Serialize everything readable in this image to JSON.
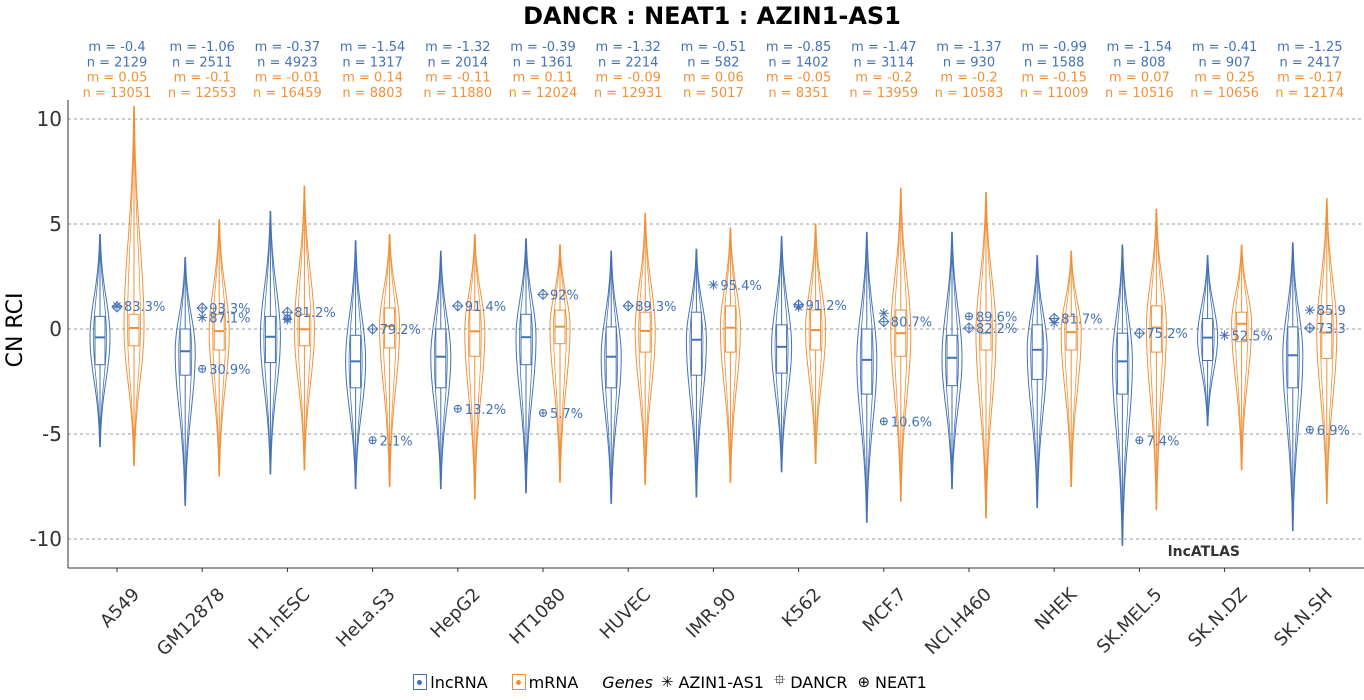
{
  "chart_data": {
    "type": "violin",
    "title": "DANCR : NEAT1 : AZIN1-AS1",
    "ylabel": "CN RCI",
    "xlabel": "",
    "ylim": [
      -11,
      11
    ],
    "yticks": [
      10,
      5,
      0,
      -5,
      -10
    ],
    "ytick_labels": [
      "10",
      "5",
      "0",
      "-5",
      "-10"
    ],
    "grid": "horizontal dashed",
    "watermark": "lncATLAS",
    "colors": {
      "lncRNA": "#4472b4",
      "mRNA": "#f0913a"
    },
    "legend": {
      "position": "bottom",
      "groups": [
        "lncRNA",
        "mRNA"
      ],
      "genes_title": "Genes",
      "genes": [
        {
          "name": "AZIN1-AS1",
          "symbol": "✳"
        },
        {
          "name": "DANCR",
          "symbol": "⯐"
        },
        {
          "name": "NEAT1",
          "symbol": "⊕"
        }
      ]
    },
    "categories": [
      "A549",
      "GM12878",
      "H1.hESC",
      "HeLa.S3",
      "HepG2",
      "HT1080",
      "HUVEC",
      "IMR.90",
      "K562",
      "MCF.7",
      "NCI.H460",
      "NHEK",
      "SK.MEL.5",
      "SK.N.DZ",
      "SK.N.SH"
    ],
    "stats": [
      {
        "lnc_m": "m = -0.4",
        "lnc_n": "n = 2129",
        "mrna_m": "m = 0.05",
        "mrna_n": "n = 13051"
      },
      {
        "lnc_m": "m = -1.06",
        "lnc_n": "n = 2511",
        "mrna_m": "m = -0.1",
        "mrna_n": "n = 12553"
      },
      {
        "lnc_m": "m = -0.37",
        "lnc_n": "n = 4923",
        "mrna_m": "m = -0.01",
        "mrna_n": "n = 16459"
      },
      {
        "lnc_m": "m = -1.54",
        "lnc_n": "n = 1317",
        "mrna_m": "m = 0.14",
        "mrna_n": "n = 8803"
      },
      {
        "lnc_m": "m = -1.32",
        "lnc_n": "n = 2014",
        "mrna_m": "m = -0.11",
        "mrna_n": "n = 11880"
      },
      {
        "lnc_m": "m = -0.39",
        "lnc_n": "n = 1361",
        "mrna_m": "m = 0.11",
        "mrna_n": "n = 12024"
      },
      {
        "lnc_m": "m = -1.32",
        "lnc_n": "n = 2214",
        "mrna_m": "m = -0.09",
        "mrna_n": "n = 12931"
      },
      {
        "lnc_m": "m = -0.51",
        "lnc_n": "n = 582",
        "mrna_m": "m = 0.06",
        "mrna_n": "n = 5017"
      },
      {
        "lnc_m": "m = -0.85",
        "lnc_n": "n = 1402",
        "mrna_m": "m = -0.05",
        "mrna_n": "n = 8351"
      },
      {
        "lnc_m": "m = -1.47",
        "lnc_n": "n = 3114",
        "mrna_m": "m = -0.2",
        "mrna_n": "n = 13959"
      },
      {
        "lnc_m": "m = -1.37",
        "lnc_n": "n = 930",
        "mrna_m": "m = -0.2",
        "mrna_n": "n = 10583"
      },
      {
        "lnc_m": "m = -0.99",
        "lnc_n": "n = 1588",
        "mrna_m": "m = -0.15",
        "mrna_n": "n = 11009"
      },
      {
        "lnc_m": "m = -1.54",
        "lnc_n": "n = 808",
        "mrna_m": "m = 0.07",
        "mrna_n": "n = 10516"
      },
      {
        "lnc_m": "m = -0.41",
        "lnc_n": "n = 907",
        "mrna_m": "m = 0.25",
        "mrna_n": "n = 10656"
      },
      {
        "lnc_m": "m = -1.25",
        "lnc_n": "n = 2417",
        "mrna_m": "m = -0.17",
        "mrna_n": "n = 12174"
      }
    ],
    "lncRNA": [
      {
        "median": -0.4,
        "q1": -1.7,
        "q3": 0.6,
        "min": -5.6,
        "max": 4.5
      },
      {
        "median": -1.06,
        "q1": -2.2,
        "q3": 0.0,
        "min": -8.4,
        "max": 3.4
      },
      {
        "median": -0.37,
        "q1": -1.6,
        "q3": 0.6,
        "min": -6.9,
        "max": 5.6
      },
      {
        "median": -1.54,
        "q1": -2.8,
        "q3": -0.3,
        "min": -7.6,
        "max": 4.2
      },
      {
        "median": -1.32,
        "q1": -2.8,
        "q3": 0.0,
        "min": -7.6,
        "max": 3.7
      },
      {
        "median": -0.39,
        "q1": -1.7,
        "q3": 0.7,
        "min": -7.8,
        "max": 4.3
      },
      {
        "median": -1.32,
        "q1": -2.8,
        "q3": 0.1,
        "min": -8.3,
        "max": 3.7
      },
      {
        "median": -0.51,
        "q1": -2.2,
        "q3": 0.8,
        "min": -8.0,
        "max": 3.8
      },
      {
        "median": -0.85,
        "q1": -2.1,
        "q3": 0.2,
        "min": -6.8,
        "max": 4.4
      },
      {
        "median": -1.47,
        "q1": -3.1,
        "q3": 0.0,
        "min": -9.2,
        "max": 4.6
      },
      {
        "median": -1.37,
        "q1": -2.7,
        "q3": -0.3,
        "min": -7.6,
        "max": 4.6
      },
      {
        "median": -0.99,
        "q1": -2.4,
        "q3": 0.2,
        "min": -8.5,
        "max": 3.5
      },
      {
        "median": -1.54,
        "q1": -3.1,
        "q3": -0.2,
        "min": -10.3,
        "max": 4.0
      },
      {
        "median": -0.41,
        "q1": -1.5,
        "q3": 0.5,
        "min": -4.6,
        "max": 3.5
      },
      {
        "median": -1.25,
        "q1": -2.8,
        "q3": 0.1,
        "min": -9.6,
        "max": 4.1
      }
    ],
    "mRNA": [
      {
        "median": 0.05,
        "q1": -0.8,
        "q3": 0.7,
        "min": -6.5,
        "max": 10.6
      },
      {
        "median": -0.1,
        "q1": -1.0,
        "q3": 0.7,
        "min": -7.0,
        "max": 5.2
      },
      {
        "median": -0.01,
        "q1": -0.8,
        "q3": 0.7,
        "min": -6.7,
        "max": 6.8
      },
      {
        "median": 0.14,
        "q1": -0.9,
        "q3": 1.0,
        "min": -7.5,
        "max": 4.5
      },
      {
        "median": -0.11,
        "q1": -1.3,
        "q3": 0.9,
        "min": -8.1,
        "max": 4.5
      },
      {
        "median": 0.11,
        "q1": -0.7,
        "q3": 0.9,
        "min": -7.3,
        "max": 4.0
      },
      {
        "median": -0.09,
        "q1": -1.1,
        "q3": 0.8,
        "min": -7.4,
        "max": 5.5
      },
      {
        "median": 0.06,
        "q1": -1.1,
        "q3": 1.1,
        "min": -7.3,
        "max": 4.8
      },
      {
        "median": -0.05,
        "q1": -1.0,
        "q3": 0.9,
        "min": -6.4,
        "max": 5.0
      },
      {
        "median": -0.2,
        "q1": -1.3,
        "q3": 0.9,
        "min": -8.2,
        "max": 6.7
      },
      {
        "median": -0.2,
        "q1": -1.0,
        "q3": 0.4,
        "min": -9.0,
        "max": 6.5
      },
      {
        "median": -0.15,
        "q1": -1.0,
        "q3": 0.6,
        "min": -7.5,
        "max": 3.7
      },
      {
        "median": 0.07,
        "q1": -1.1,
        "q3": 1.1,
        "min": -8.6,
        "max": 5.7
      },
      {
        "median": 0.25,
        "q1": -0.6,
        "q3": 0.8,
        "min": -6.7,
        "max": 4.0
      },
      {
        "median": -0.17,
        "q1": -1.4,
        "q3": 0.8,
        "min": -8.3,
        "max": 6.2
      }
    ],
    "genes": [
      {
        "AZIN1-AS1": [
          1.1,
          "83.3%"
        ],
        "DANCR": [
          1.05,
          null
        ],
        "NEAT1": null
      },
      {
        "AZIN1-AS1": [
          0.55,
          "87.1%"
        ],
        "DANCR": [
          1.0,
          "93.3%"
        ],
        "NEAT1": [
          -1.9,
          "30.9%"
        ]
      },
      {
        "AZIN1-AS1": [
          0.45,
          null
        ],
        "DANCR": [
          0.8,
          "81.2%"
        ],
        "NEAT1": [
          0.5,
          null
        ]
      },
      {
        "AZIN1-AS1": null,
        "DANCR": [
          0.0,
          "79.2%"
        ],
        "NEAT1": [
          -5.3,
          "2.1%"
        ]
      },
      {
        "AZIN1-AS1": null,
        "DANCR": [
          1.1,
          "91.4%"
        ],
        "NEAT1": [
          -3.8,
          "13.2%"
        ]
      },
      {
        "AZIN1-AS1": null,
        "DANCR": [
          1.65,
          "92%"
        ],
        "NEAT1": [
          -4.0,
          "5.7%"
        ]
      },
      {
        "AZIN1-AS1": null,
        "DANCR": [
          1.1,
          "89.3%"
        ],
        "NEAT1": null
      },
      {
        "AZIN1-AS1": [
          2.1,
          "95.4%"
        ],
        "DANCR": null,
        "NEAT1": null
      },
      {
        "AZIN1-AS1": [
          1.05,
          null
        ],
        "DANCR": [
          1.15,
          "91.2%"
        ],
        "NEAT1": null
      },
      {
        "AZIN1-AS1": [
          0.75,
          null
        ],
        "DANCR": [
          0.35,
          "80.7%"
        ],
        "NEAT1": [
          -4.4,
          "10.6%"
        ]
      },
      {
        "AZIN1-AS1": null,
        "DANCR": [
          0.05,
          "82.2%"
        ],
        "NEAT1": [
          0.6,
          "89.6%"
        ]
      },
      {
        "AZIN1-AS1": [
          0.3,
          null
        ],
        "DANCR": [
          0.5,
          "81.7%"
        ],
        "NEAT1": null
      },
      {
        "AZIN1-AS1": null,
        "DANCR": [
          -0.2,
          "75.2%"
        ],
        "NEAT1": [
          -5.3,
          "7.4%"
        ]
      },
      {
        "AZIN1-AS1": [
          -0.3,
          "52.5%"
        ],
        "DANCR": null,
        "NEAT1": null
      },
      {
        "AZIN1-AS1": [
          0.9,
          "85.9"
        ],
        "DANCR": [
          0.05,
          "73.3"
        ],
        "NEAT1": [
          -4.8,
          "6.9%"
        ]
      }
    ]
  }
}
